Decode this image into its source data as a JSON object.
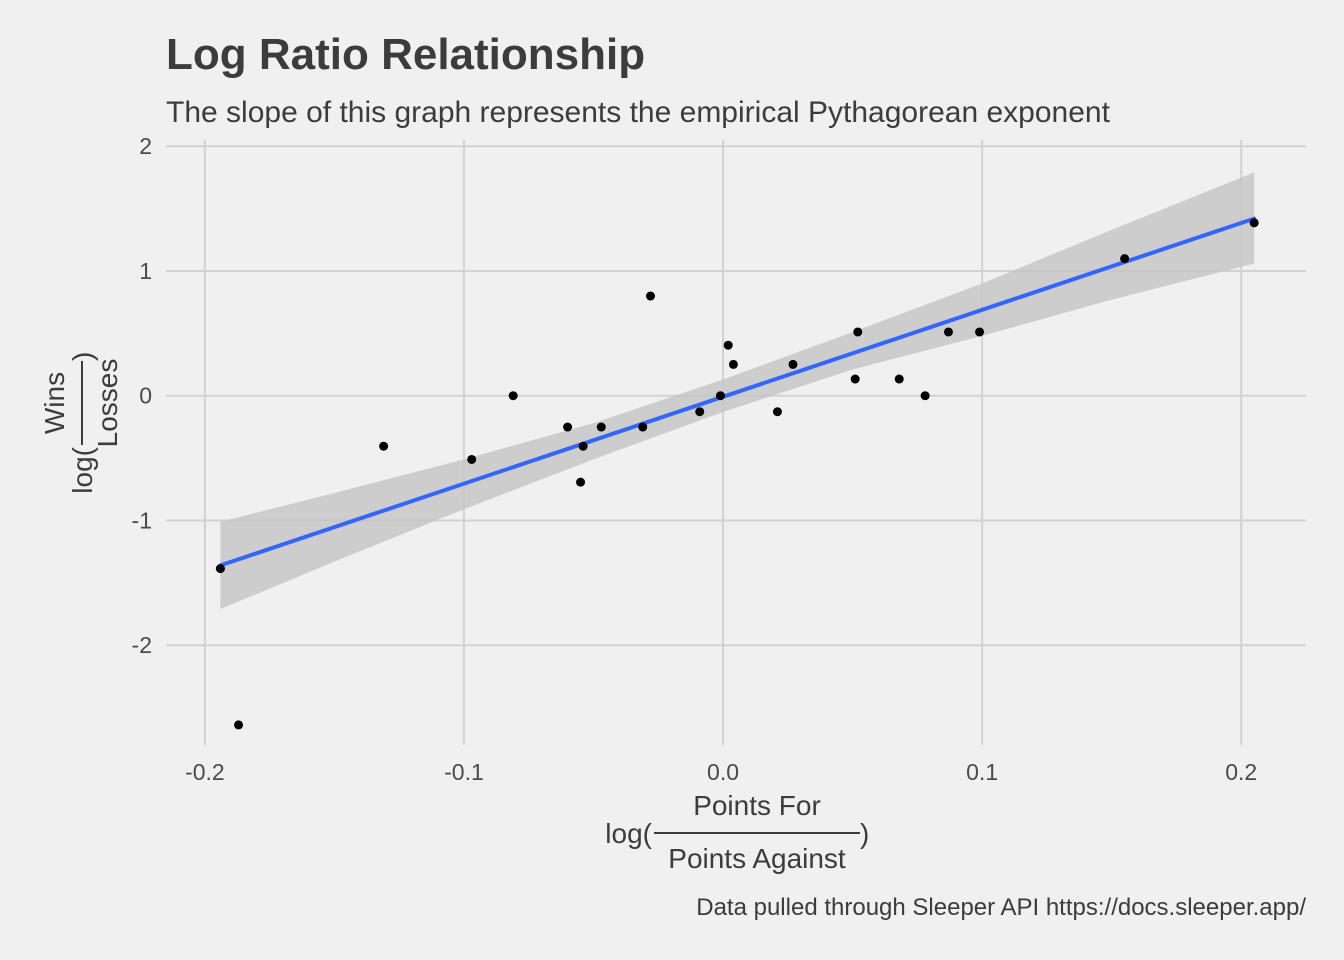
{
  "chart_data": {
    "type": "scatter",
    "title": "Log Ratio Relationship",
    "subtitle": "The slope of this graph represents the empirical Pythagorean exponent",
    "caption": "Data pulled through Sleeper API https://docs.sleeper.app/",
    "xlabel": {
      "prefix": "log(",
      "numerator": "Points For",
      "denominator": "Points Against",
      "suffix": ")"
    },
    "ylabel": {
      "prefix": "log(",
      "numerator": "Wins",
      "denominator": "Losses",
      "suffix": ")"
    },
    "xlim": [
      -0.215,
      0.225
    ],
    "ylim": [
      -2.8,
      2.05
    ],
    "x_ticks": [
      {
        "value": -0.2,
        "label": "-0.2"
      },
      {
        "value": -0.1,
        "label": "-0.1"
      },
      {
        "value": 0.0,
        "label": "0.0"
      },
      {
        "value": 0.1,
        "label": "0.1"
      },
      {
        "value": 0.2,
        "label": "0.2"
      }
    ],
    "y_ticks": [
      {
        "value": 2,
        "label": "2"
      },
      {
        "value": 1,
        "label": "1"
      },
      {
        "value": 0,
        "label": "0"
      },
      {
        "value": -1,
        "label": "-1"
      },
      {
        "value": -2,
        "label": "-2"
      }
    ],
    "grid": true,
    "points": [
      {
        "x": -0.194,
        "y": -1.386
      },
      {
        "x": -0.187,
        "y": -2.639
      },
      {
        "x": -0.131,
        "y": -0.405
      },
      {
        "x": -0.097,
        "y": -0.511
      },
      {
        "x": -0.081,
        "y": 0.0
      },
      {
        "x": -0.06,
        "y": -0.251
      },
      {
        "x": -0.055,
        "y": -0.693
      },
      {
        "x": -0.054,
        "y": -0.405
      },
      {
        "x": -0.047,
        "y": -0.251
      },
      {
        "x": -0.031,
        "y": -0.251
      },
      {
        "x": -0.028,
        "y": 0.799
      },
      {
        "x": -0.009,
        "y": -0.128
      },
      {
        "x": -0.001,
        "y": 0.0
      },
      {
        "x": 0.002,
        "y": 0.405
      },
      {
        "x": 0.004,
        "y": 0.251
      },
      {
        "x": 0.021,
        "y": -0.128
      },
      {
        "x": 0.027,
        "y": 0.251
      },
      {
        "x": 0.051,
        "y": 0.134
      },
      {
        "x": 0.052,
        "y": 0.511
      },
      {
        "x": 0.068,
        "y": 0.134
      },
      {
        "x": 0.078,
        "y": 0.0
      },
      {
        "x": 0.087,
        "y": 0.511
      },
      {
        "x": 0.099,
        "y": 0.511
      },
      {
        "x": 0.155,
        "y": 1.099
      },
      {
        "x": 0.205,
        "y": 1.386
      }
    ],
    "trend_line": {
      "method": "linear regression",
      "x": [
        -0.194,
        0.205
      ],
      "y": [
        -1.36,
        1.42
      ]
    },
    "confidence_band": [
      {
        "x": -0.194,
        "lower": -1.71,
        "upper": -1.01
      },
      {
        "x": -0.15,
        "lower": -1.33,
        "upper": -0.78
      },
      {
        "x": -0.1,
        "lower": -0.91,
        "upper": -0.51
      },
      {
        "x": -0.05,
        "lower": -0.51,
        "upper": -0.22
      },
      {
        "x": 0.0,
        "lower": -0.13,
        "upper": 0.13
      },
      {
        "x": 0.05,
        "lower": 0.21,
        "upper": 0.51
      },
      {
        "x": 0.1,
        "lower": 0.48,
        "upper": 0.9
      },
      {
        "x": 0.15,
        "lower": 0.77,
        "upper": 1.33
      },
      {
        "x": 0.205,
        "lower": 1.06,
        "upper": 1.79
      }
    ],
    "colors": {
      "background": "#f0f0f0",
      "grid": "#d2d2d2",
      "points": "#000000",
      "trend_line": "#3366ff",
      "band": "#c4c4c4"
    }
  }
}
